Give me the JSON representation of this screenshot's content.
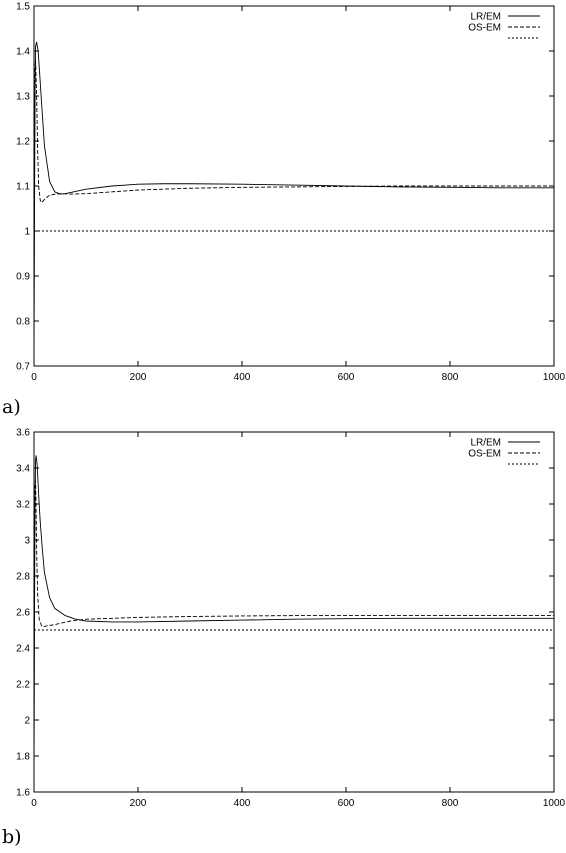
{
  "chart_data": [
    {
      "panel": "a)",
      "type": "line",
      "xlim": [
        0,
        1000
      ],
      "ylim": [
        0.7,
        1.5
      ],
      "xticks": [
        0,
        200,
        400,
        600,
        800,
        1000
      ],
      "yticks": [
        0.7,
        0.8,
        0.9,
        1,
        1.1,
        1.2,
        1.3,
        1.4,
        1.5
      ],
      "legend_position": "top-right",
      "grid": false,
      "series": [
        {
          "name": "LR/EM",
          "dash": "solid",
          "x": [
            0,
            1,
            2,
            3,
            5,
            8,
            12,
            16,
            20,
            30,
            40,
            50,
            60,
            80,
            100,
            150,
            200,
            250,
            300,
            400,
            500,
            600,
            700,
            800,
            900,
            1000
          ],
          "y": [
            0.72,
            1.05,
            1.3,
            1.41,
            1.42,
            1.4,
            1.33,
            1.26,
            1.19,
            1.11,
            1.087,
            1.082,
            1.083,
            1.088,
            1.093,
            1.1,
            1.104,
            1.105,
            1.105,
            1.104,
            1.102,
            1.1,
            1.098,
            1.097,
            1.096,
            1.096
          ]
        },
        {
          "name": "OS-EM",
          "dash": "dashed",
          "x": [
            0,
            1,
            2,
            3,
            5,
            7,
            9,
            12,
            15,
            20,
            30,
            50,
            70,
            100,
            150,
            200,
            300,
            400,
            500,
            600,
            700,
            800,
            900,
            1000
          ],
          "y": [
            0.78,
            1.2,
            1.36,
            1.38,
            1.3,
            1.18,
            1.1,
            1.068,
            1.063,
            1.07,
            1.08,
            1.083,
            1.082,
            1.083,
            1.087,
            1.091,
            1.095,
            1.097,
            1.098,
            1.099,
            1.1,
            1.1,
            1.1,
            1.1
          ]
        },
        {
          "name": "",
          "dash": "dotted",
          "x": [
            0,
            1000
          ],
          "y": [
            1,
            1
          ]
        }
      ]
    },
    {
      "panel": "b)",
      "type": "line",
      "xlim": [
        0,
        1000
      ],
      "ylim": [
        1.6,
        3.6
      ],
      "xticks": [
        0,
        200,
        400,
        600,
        800,
        1000
      ],
      "yticks": [
        1.6,
        1.8,
        2,
        2.2,
        2.4,
        2.6,
        2.8,
        3,
        3.2,
        3.4,
        3.6
      ],
      "legend_position": "top-right",
      "grid": false,
      "series": [
        {
          "name": "LR/EM",
          "dash": "solid",
          "x": [
            0,
            1,
            2,
            3,
            4,
            6,
            9,
            12,
            16,
            20,
            30,
            40,
            60,
            80,
            100,
            150,
            200,
            300,
            400,
            500,
            600,
            700,
            800,
            900,
            1000
          ],
          "y": [
            1.72,
            2.6,
            3.2,
            3.44,
            3.47,
            3.42,
            3.25,
            3.1,
            2.95,
            2.82,
            2.68,
            2.62,
            2.58,
            2.56,
            2.55,
            2.545,
            2.545,
            2.55,
            2.555,
            2.56,
            2.563,
            2.565,
            2.565,
            2.565,
            2.565
          ]
        },
        {
          "name": "OS-EM",
          "dash": "dashed",
          "x": [
            0,
            1,
            2,
            3,
            4,
            5,
            7,
            10,
            15,
            20,
            40,
            70,
            100,
            200,
            300,
            400,
            500,
            600,
            700,
            800,
            900,
            1000
          ],
          "y": [
            1.72,
            2.9,
            3.3,
            3.33,
            3.18,
            2.95,
            2.7,
            2.56,
            2.52,
            2.52,
            2.53,
            2.55,
            2.56,
            2.57,
            2.575,
            2.578,
            2.58,
            2.58,
            2.58,
            2.58,
            2.58,
            2.58
          ]
        },
        {
          "name": "",
          "dash": "dotted",
          "x": [
            0,
            1000
          ],
          "y": [
            2.5,
            2.5
          ]
        }
      ]
    }
  ]
}
